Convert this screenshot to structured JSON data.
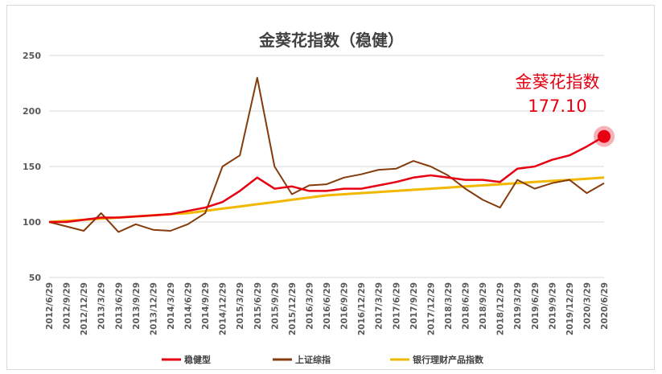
{
  "chart_data": {
    "type": "line",
    "title": "金葵花指数（稳健）",
    "ylim": [
      50,
      250
    ],
    "yticks": [
      50,
      100,
      150,
      200,
      250
    ],
    "grid": "horizontal",
    "legend_position": "bottom",
    "categories": [
      "2012/6/29",
      "2012/9/29",
      "2012/12/29",
      "2013/3/29",
      "2013/6/29",
      "2013/9/29",
      "2013/12/29",
      "2014/3/29",
      "2014/6/29",
      "2014/9/29",
      "2014/12/29",
      "2015/3/29",
      "2015/6/29",
      "2015/9/29",
      "2015/12/29",
      "2016/3/29",
      "2016/6/29",
      "2016/9/29",
      "2016/12/29",
      "2017/3/29",
      "2017/6/29",
      "2017/9/29",
      "2017/12/29",
      "2018/3/29",
      "2018/6/29",
      "2018/9/29",
      "2018/12/29",
      "2019/3/29",
      "2019/6/29",
      "2019/9/29",
      "2019/12/29",
      "2020/3/29",
      "2020/6/29"
    ],
    "series": [
      {
        "name": "稳健型",
        "color": "#e60012",
        "values": [
          100,
          100,
          102,
          104,
          104,
          105,
          106,
          107,
          110,
          113,
          118,
          128,
          140,
          130,
          132,
          128,
          128,
          130,
          130,
          133,
          136,
          140,
          142,
          140,
          138,
          138,
          136,
          148,
          150,
          156,
          160,
          168,
          177.1
        ]
      },
      {
        "name": "上证综指",
        "color": "#843c0c",
        "values": [
          100,
          96,
          92,
          108,
          91,
          98,
          93,
          92,
          98,
          108,
          150,
          160,
          230,
          150,
          125,
          133,
          134,
          140,
          143,
          147,
          148,
          155,
          150,
          142,
          130,
          120,
          113,
          138,
          130,
          135,
          138,
          126,
          135
        ]
      },
      {
        "name": "银行理财产品指数",
        "color": "#f2b800",
        "values": [
          100,
          101,
          102,
          103,
          104,
          105,
          106,
          107,
          108,
          110,
          112,
          114,
          116,
          118,
          120,
          122,
          124,
          125,
          126,
          127,
          128,
          129,
          130,
          131,
          132,
          133,
          134,
          135,
          136,
          137,
          138,
          139,
          140
        ]
      }
    ],
    "annotation": {
      "label": "金葵花指数",
      "value": "177.10",
      "color": "#e60012"
    }
  }
}
